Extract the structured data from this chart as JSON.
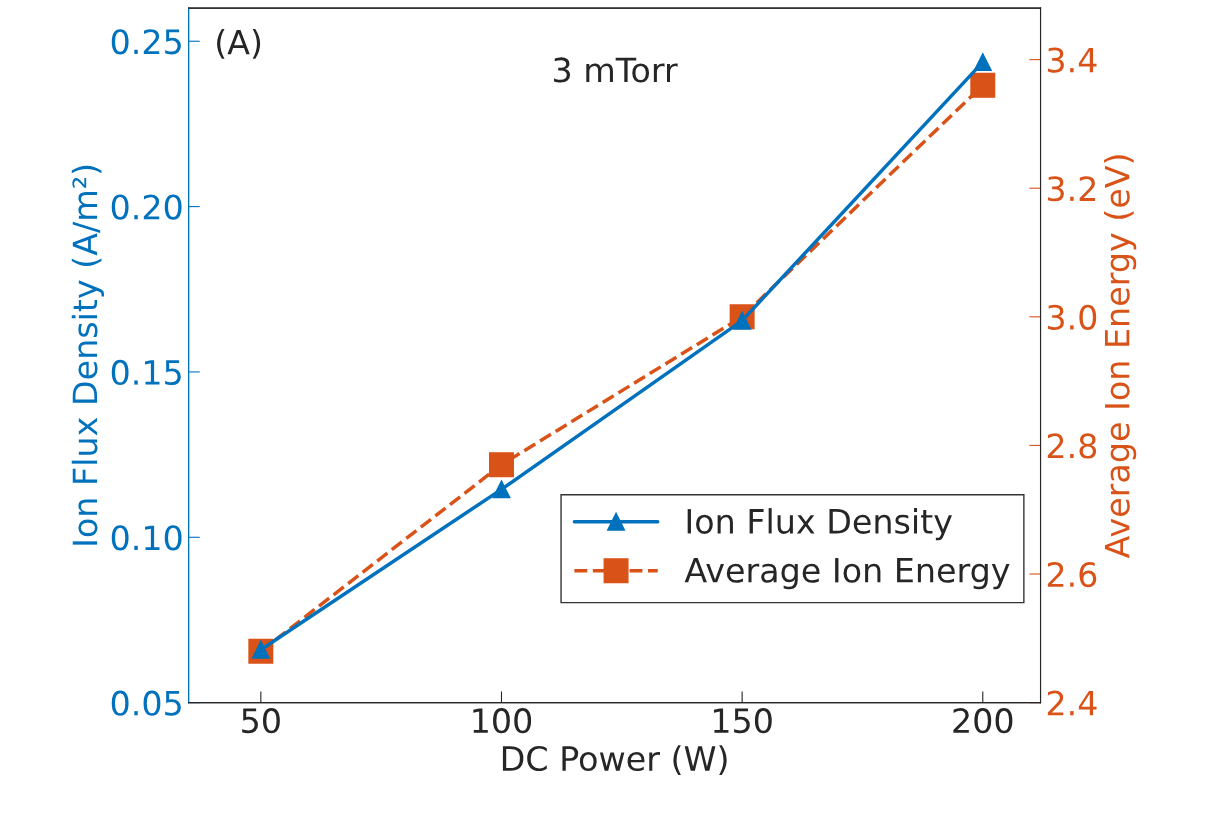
{
  "chart_data": {
    "type": "line",
    "xlabel": "DC Power (W)",
    "ylabel": "Ion Flux Density (A/m²)",
    "y2label": "Average Ion Energy (eV)",
    "x": [
      50,
      100,
      150,
      200
    ],
    "series": [
      {
        "name": "Ion Flux Density",
        "color": "#0072bd",
        "values": [
          0.066,
          0.1145,
          0.1655,
          0.2437
        ],
        "marker": "triangle",
        "line_style": "solid"
      },
      {
        "name": "Average Ion Energy",
        "color": "#d95319",
        "values": [
          2.48,
          2.77,
          3.0,
          3.36
        ],
        "marker": "square",
        "line_style": "dashed",
        "axis": "y2"
      }
    ],
    "xlim": [
      35,
      212
    ],
    "xticks": [
      50,
      100,
      150,
      200
    ],
    "ylim": [
      0.05,
      0.26
    ],
    "yticks": [
      0.05,
      {
        "value": 0.1,
        "label": "0.10"
      },
      0.15,
      {
        "value": 0.2,
        "label": "0.20"
      },
      0.25
    ],
    "y2lim": [
      2.4,
      3.48
    ],
    "y2ticks": [
      2.4,
      2.6,
      2.8,
      {
        "value": 3.0,
        "label": "3.0"
      },
      3.2,
      3.4
    ],
    "annotations": [
      "(A)",
      "3 mTorr"
    ],
    "legend": "bottom right",
    "grid": false
  }
}
